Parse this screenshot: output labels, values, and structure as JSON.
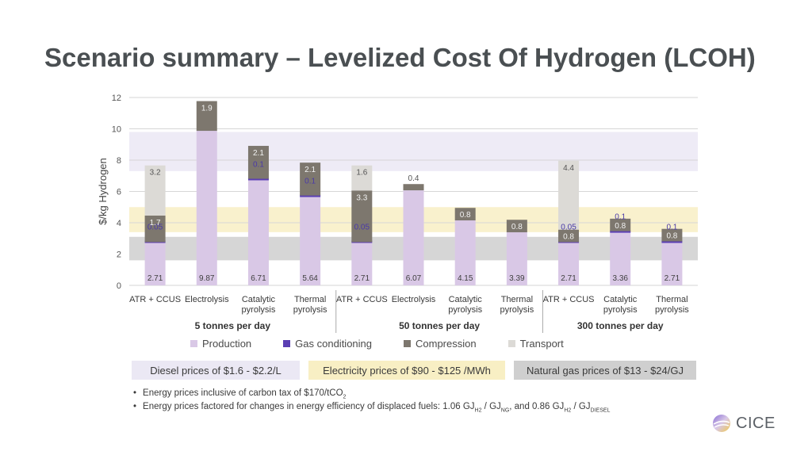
{
  "title": "Scenario summary – Levelized Cost Of Hydrogen (LCOH)",
  "chart_data": {
    "type": "bar",
    "stacked": true,
    "ylabel": "$/kg Hydrogen",
    "ylim": [
      0,
      12
    ],
    "yticks": [
      0,
      2,
      4,
      6,
      8,
      10,
      12
    ],
    "grid": true,
    "groups": [
      {
        "label": "5 tonnes per day",
        "categories": [
          {
            "label": [
              "ATR + CCUS"
            ],
            "values": [
              2.71,
              0.05,
              1.7,
              3.2
            ],
            "labels": [
              "2.71",
              "0.05",
              "1.7",
              "3.2"
            ]
          },
          {
            "label": [
              "Electrolysis"
            ],
            "values": [
              9.87,
              0,
              1.9,
              0
            ],
            "labels": [
              "9.87",
              "",
              "1.9",
              ""
            ]
          },
          {
            "label": [
              "Catalytic",
              "pyrolysis"
            ],
            "values": [
              6.71,
              0.1,
              2.1,
              0
            ],
            "labels": [
              "6.71",
              "0.1",
              "2.1",
              ""
            ]
          },
          {
            "label": [
              "Thermal",
              "pyrolysis"
            ],
            "values": [
              5.64,
              0.1,
              2.1,
              0
            ],
            "labels": [
              "5.64",
              "0.1",
              "2.1",
              ""
            ]
          }
        ]
      },
      {
        "label": "50 tonnes per day",
        "categories": [
          {
            "label": [
              "ATR + CCUS"
            ],
            "values": [
              2.71,
              0.05,
              3.3,
              1.6
            ],
            "labels": [
              "2.71",
              "0.05",
              "3.3",
              "1.6"
            ]
          },
          {
            "label": [
              "Electrolysis"
            ],
            "values": [
              6.07,
              0,
              0.4,
              0
            ],
            "labels": [
              "6.07",
              "",
              "0.4",
              ""
            ]
          },
          {
            "label": [
              "Catalytic",
              "pyrolysis"
            ],
            "values": [
              4.15,
              0,
              0.8,
              0
            ],
            "labels": [
              "4.15",
              "",
              "0.8",
              ""
            ]
          },
          {
            "label": [
              "Thermal",
              "pyrolysis"
            ],
            "values": [
              3.39,
              0,
              0.8,
              0
            ],
            "labels": [
              "3.39",
              "",
              "0.8",
              ""
            ]
          }
        ]
      },
      {
        "label": "300 tonnes per day",
        "categories": [
          {
            "label": [
              "ATR + CCUS"
            ],
            "values": [
              2.71,
              0.05,
              0.8,
              4.4
            ],
            "labels": [
              "2.71",
              "0.05",
              "0.8",
              "4.4"
            ]
          },
          {
            "label": [
              "Catalytic",
              "pyrolysis"
            ],
            "values": [
              3.36,
              0.1,
              0.8,
              0
            ],
            "labels": [
              "3.36",
              "0.1",
              "0.8",
              ""
            ]
          },
          {
            "label": [
              "Thermal",
              "pyrolysis"
            ],
            "values": [
              2.71,
              0.1,
              0.8,
              0
            ],
            "labels": [
              "2.71",
              "0.1",
              "0.8",
              ""
            ]
          }
        ]
      }
    ],
    "series": [
      {
        "name": "Production",
        "color": "#d9c8e6"
      },
      {
        "name": "Gas conditioning",
        "color": "#5b3fb3"
      },
      {
        "name": "Compression",
        "color": "#7d776e"
      },
      {
        "name": "Transport",
        "color": "#dcdad6"
      }
    ],
    "bands": [
      {
        "label": "Diesel prices of $1.6 - $2.2/L",
        "range": [
          7.3,
          9.8
        ],
        "color": "#ebe8f4"
      },
      {
        "label": "Electricity prices of $90 - $125 /MWh",
        "range": [
          3.4,
          5.0
        ],
        "color": "#f8efc4"
      },
      {
        "label": "Natural gas prices of $13 - $24/GJ",
        "range": [
          1.6,
          3.1
        ],
        "color": "#cfcfcf"
      }
    ],
    "legend_position": "bottom"
  },
  "notes": {
    "n1": {
      "text": "Energy prices inclusive of carbon tax of $170/tCO",
      "sub": "2"
    },
    "n2": {
      "a": "Energy prices factored for changes in energy efficiency of displaced fuels: 1.06 GJ",
      "s1": "H2",
      "b": " / GJ",
      "s2": "NG",
      "c": ", and 0.86 GJ",
      "s3": "H2",
      "d": " / GJ",
      "s4": "DIESEL"
    }
  },
  "logo": {
    "text": "CICE"
  }
}
